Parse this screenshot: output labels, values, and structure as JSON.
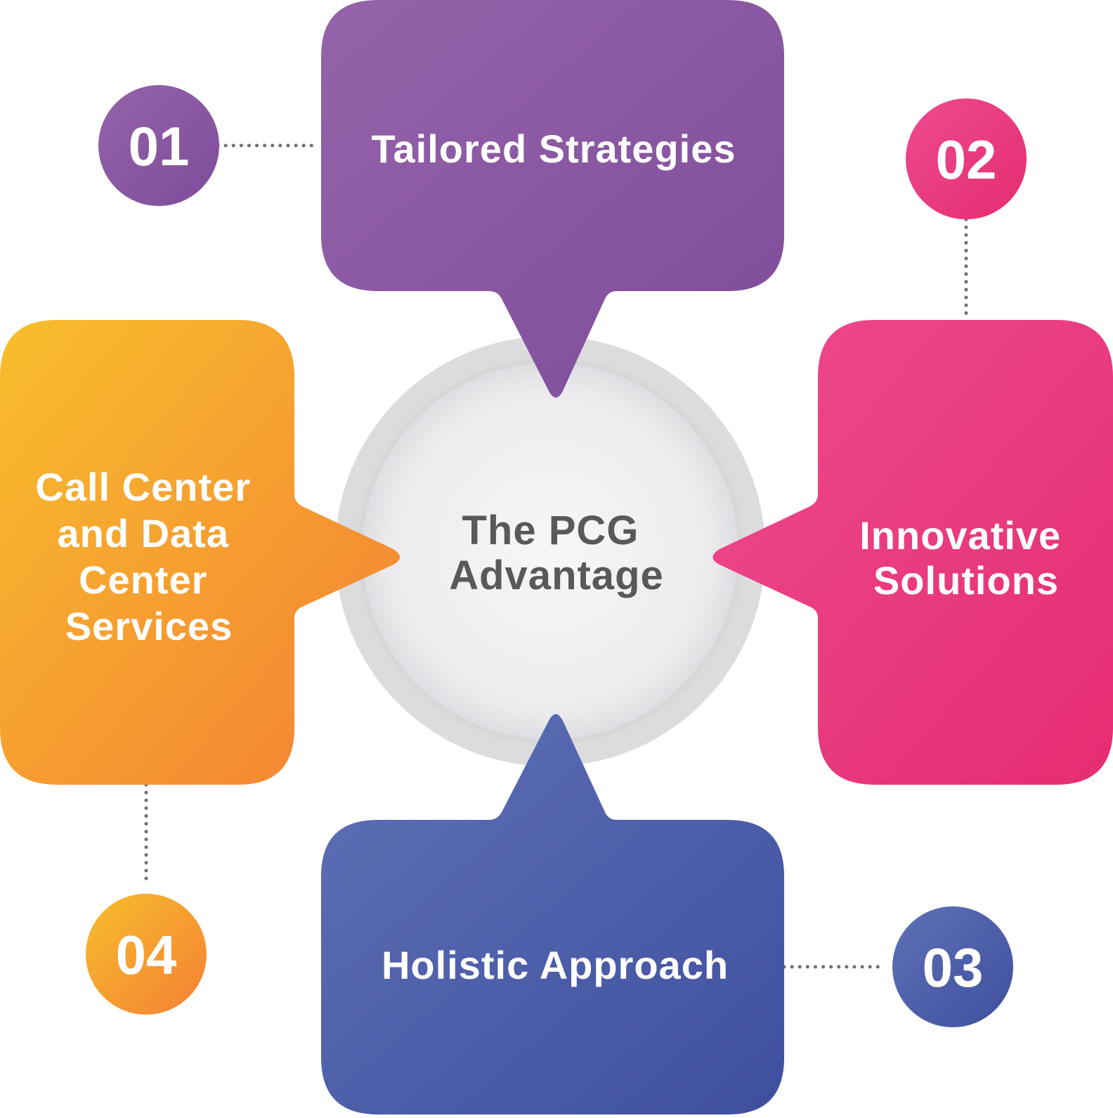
{
  "center": {
    "lines": [
      "The PCG",
      "Advantage"
    ]
  },
  "items": [
    {
      "number": "01",
      "lines": [
        "Tailored Strategies"
      ],
      "colors": {
        "start": "#9563a9",
        "end": "#7f4c9b"
      }
    },
    {
      "number": "02",
      "lines": [
        "Innovative",
        "Solutions"
      ],
      "colors": {
        "start": "#ee4a8e",
        "end": "#e52d72"
      }
    },
    {
      "number": "03",
      "lines": [
        "Holistic Approach"
      ],
      "colors": {
        "start": "#5f71b6",
        "end": "#3f4f9e"
      }
    },
    {
      "number": "04",
      "lines": [
        "Call Center",
        "and Data",
        "Center",
        "Services"
      ],
      "colors": {
        "start": "#f8be2c",
        "end": "#f47f35"
      }
    }
  ]
}
